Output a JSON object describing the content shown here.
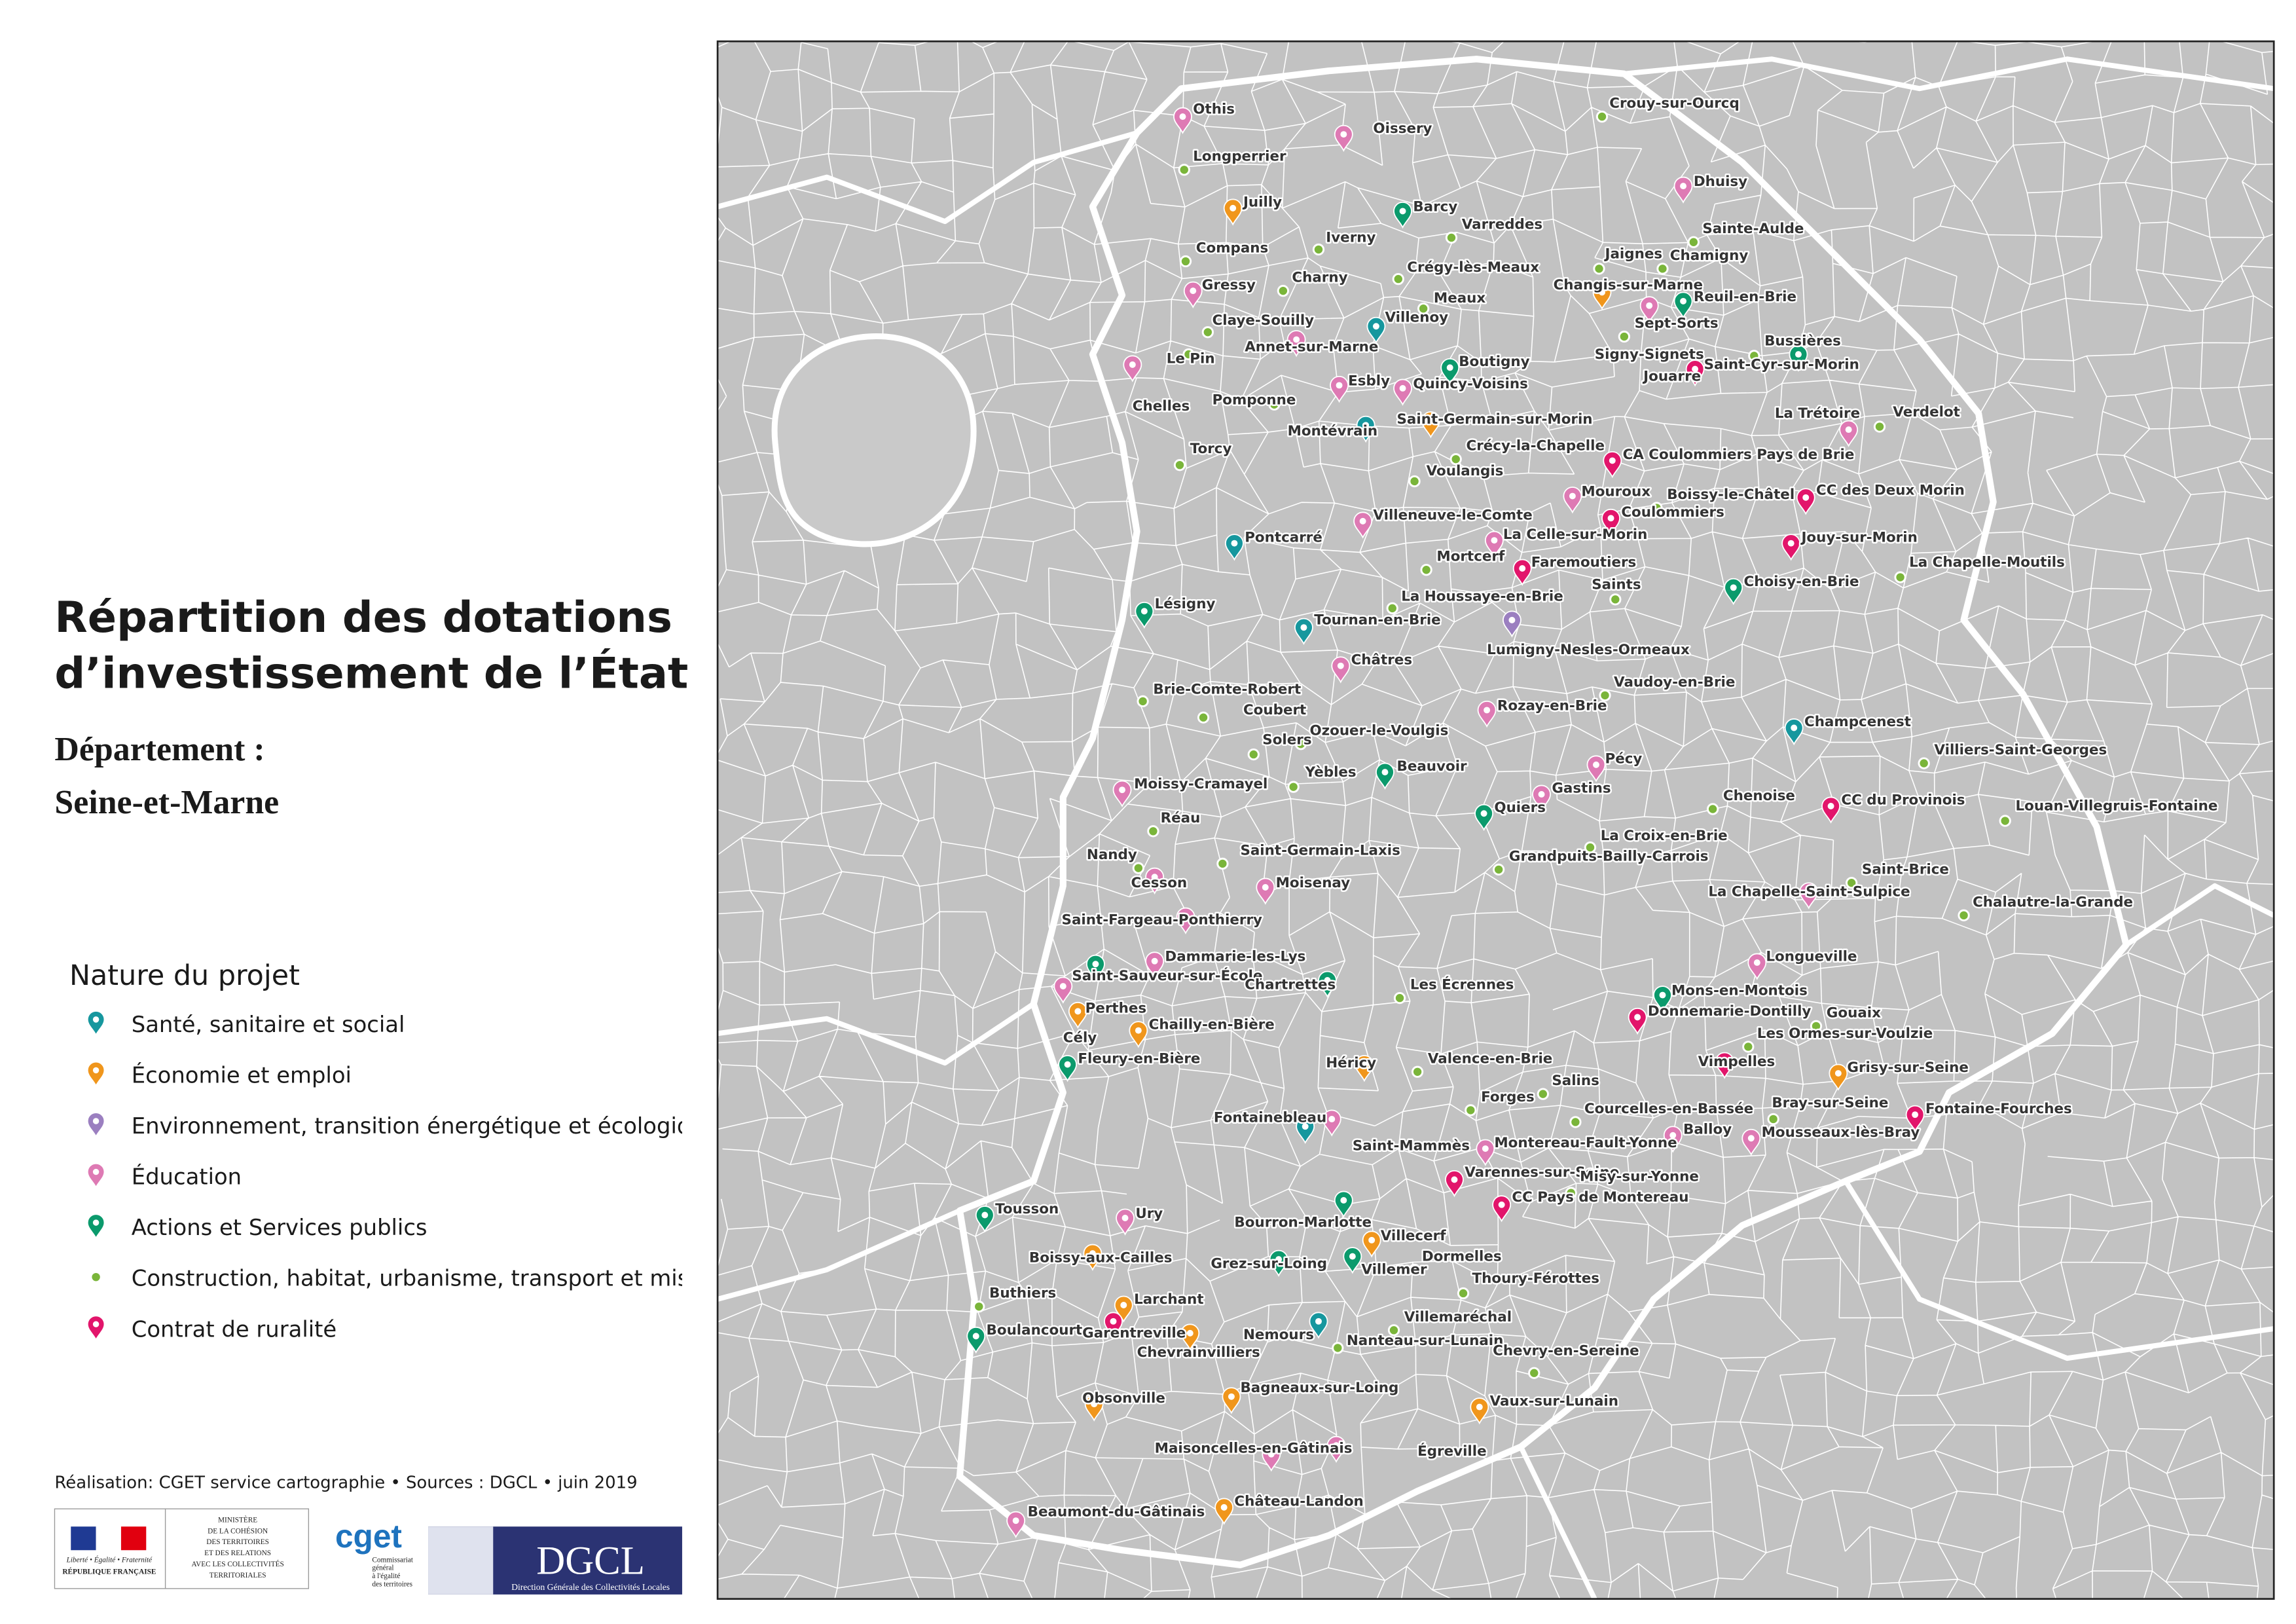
{
  "header": {
    "title_lines": [
      "Répartition des dotations",
      "d’investissement de l’État"
    ],
    "subtitle_lines": [
      "Département :",
      "Seine-et-Marne"
    ]
  },
  "legend": {
    "title": "Nature du projet",
    "items": [
      {
        "label": "Santé, sanitaire et social",
        "color": "#16979e"
      },
      {
        "label": "Économie et emploi",
        "color": "#f0961c"
      },
      {
        "label": "Environnement, transition énergétique et écologique",
        "color": "#9b7fc0"
      },
      {
        "label": "Éducation",
        "color": "#de7ab4"
      },
      {
        "label": "Actions et Services publics",
        "color": "#0b9a6c"
      },
      {
        "label": "Construction, habitat, urbanisme, transport et mise en accessibilité",
        "color": "#7ab53a"
      },
      {
        "label": "Contrat de ruralité",
        "color": "#e2156b"
      }
    ]
  },
  "credits": "Réalisation: CGET service cartographie • Sources : DGCL • juin 2019",
  "logos": {
    "republique": [
      "Liberté • Égalité • Fraternité",
      "RÉPUBLIQUE FRANÇAISE"
    ],
    "ministere": [
      "MINISTÈRE",
      "DE LA COHÉSION",
      "DES TERRITOIRES",
      "ET DES RELATIONS",
      "AVEC LES COLLECTIVITÉS",
      "TERRITORIALES"
    ],
    "cget": [
      "cget",
      "Commissariat",
      "général",
      "à l'égalité",
      "des territoires"
    ],
    "dgcl": [
      "DGCL",
      "Direction Générale des Collectivités Locales"
    ]
  },
  "map": {
    "places": [
      {
        "name": "Othis",
        "nature": 3
      },
      {
        "name": "Oissery",
        "nature": 3
      },
      {
        "name": "Crouy-sur-Ourcq",
        "nature": 5
      },
      {
        "name": "Longperrier",
        "nature": 5
      },
      {
        "name": "Juilly",
        "nature": 1
      },
      {
        "name": "Dhuisy",
        "nature": 3
      },
      {
        "name": "Barcy",
        "nature": 4
      },
      {
        "name": "Compans",
        "nature": 5
      },
      {
        "name": "Iverny",
        "nature": 5
      },
      {
        "name": "Varreddes",
        "nature": 5
      },
      {
        "name": "Sainte-Aulde",
        "nature": 5
      },
      {
        "name": "Charny",
        "nature": 5
      },
      {
        "name": "Crégy-lès-Meaux",
        "nature": 5
      },
      {
        "name": "Jaignes",
        "nature": 5
      },
      {
        "name": "Chamigny",
        "nature": 5
      },
      {
        "name": "Gressy",
        "nature": 3
      },
      {
        "name": "Meaux",
        "nature": 5
      },
      {
        "name": "Changis-sur-Marne",
        "nature": 1
      },
      {
        "name": "Reuil-en-Brie",
        "nature": 4
      },
      {
        "name": "Claye-Souilly",
        "nature": 5
      },
      {
        "name": "Villenoy",
        "nature": 0
      },
      {
        "name": "Sept-Sorts",
        "nature": 3
      },
      {
        "name": "Annet-sur-Marne",
        "nature": 3
      },
      {
        "name": "Signy-Signets",
        "nature": 5
      },
      {
        "name": "Bussières",
        "nature": 4
      },
      {
        "name": "Le Pin",
        "nature": 5
      },
      {
        "name": "Boutigny",
        "nature": 4
      },
      {
        "name": "Saint-Cyr-sur-Morin",
        "nature": 5
      },
      {
        "name": "Chelles",
        "nature": 3
      },
      {
        "name": "Esbly",
        "nature": 3
      },
      {
        "name": "Quincy-Voisins",
        "nature": 3
      },
      {
        "name": "Jouarre",
        "nature": 6
      },
      {
        "name": "Pomponne",
        "nature": 5
      },
      {
        "name": "Montévrain",
        "nature": 0
      },
      {
        "name": "Saint-Germain-sur-Morin",
        "nature": 1
      },
      {
        "name": "La Trétoire",
        "nature": 3
      },
      {
        "name": "Verdelot",
        "nature": 5
      },
      {
        "name": "Torcy",
        "nature": 5
      },
      {
        "name": "Crécy-la-Chapelle",
        "nature": 5
      },
      {
        "name": "CA Coulommiers Pays de Brie",
        "nature": 6
      },
      {
        "name": "Voulangis",
        "nature": 5
      },
      {
        "name": "Mouroux",
        "nature": 3
      },
      {
        "name": "Boissy-le-Châtel",
        "nature": 5
      },
      {
        "name": "CC des Deux Morin",
        "nature": 6
      },
      {
        "name": "Villeneuve-le-Comte",
        "nature": 3
      },
      {
        "name": "Coulommiers",
        "nature": 6
      },
      {
        "name": "Pontcarré",
        "nature": 0
      },
      {
        "name": "La Celle-sur-Morin",
        "nature": 3
      },
      {
        "name": "Jouy-sur-Morin",
        "nature": 6
      },
      {
        "name": "Mortcerf",
        "nature": 5
      },
      {
        "name": "Faremoutiers",
        "nature": 6
      },
      {
        "name": "La Chapelle-Moutils",
        "nature": 5
      },
      {
        "name": "Choisy-en-Brie",
        "nature": 4
      },
      {
        "name": "Saints",
        "nature": 5
      },
      {
        "name": "La Houssaye-en-Brie",
        "nature": 5
      },
      {
        "name": "Lésigny",
        "nature": 4
      },
      {
        "name": "Tournan-en-Brie",
        "nature": 0
      },
      {
        "name": "Lumigny-Nesles-Ormeaux",
        "nature": 2
      },
      {
        "name": "Châtres",
        "nature": 3
      },
      {
        "name": "Vaudoy-en-Brie",
        "nature": 5
      },
      {
        "name": "Brie-Comte-Robert",
        "nature": 5
      },
      {
        "name": "Coubert",
        "nature": 5
      },
      {
        "name": "Rozay-en-Brie",
        "nature": 3
      },
      {
        "name": "Champcenest",
        "nature": 0
      },
      {
        "name": "Solers",
        "nature": 5
      },
      {
        "name": "Ozouer-le-Voulgis",
        "nature": 5
      },
      {
        "name": "Villiers-Saint-Georges",
        "nature": 5
      },
      {
        "name": "Pécy",
        "nature": 3
      },
      {
        "name": "Yèbles",
        "nature": 5
      },
      {
        "name": "Beauvoir",
        "nature": 4
      },
      {
        "name": "Moissy-Cramayel",
        "nature": 3
      },
      {
        "name": "Gastins",
        "nature": 3
      },
      {
        "name": "Chenoise",
        "nature": 5
      },
      {
        "name": "CC du Provinois",
        "nature": 6
      },
      {
        "name": "Louan-Villegruis-Fontaine",
        "nature": 5
      },
      {
        "name": "Réau",
        "nature": 5
      },
      {
        "name": "Quiers",
        "nature": 4
      },
      {
        "name": "La Croix-en-Brie",
        "nature": 5
      },
      {
        "name": "Nandy",
        "nature": 5
      },
      {
        "name": "Saint-Germain-Laxis",
        "nature": 5
      },
      {
        "name": "Grandpuits-Bailly-Carrois",
        "nature": 5
      },
      {
        "name": "Saint-Brice",
        "nature": 5
      },
      {
        "name": "Cesson",
        "nature": 3
      },
      {
        "name": "Moisenay",
        "nature": 3
      },
      {
        "name": "La Chapelle-Saint-Sulpice",
        "nature": 3
      },
      {
        "name": "Chalautre-la-Grande",
        "nature": 5
      },
      {
        "name": "Saint-Fargeau-Ponthierry",
        "nature": 3
      },
      {
        "name": "Dammarie-les-Lys",
        "nature": 3
      },
      {
        "name": "Longueville",
        "nature": 3
      },
      {
        "name": "Saint-Sauveur-sur-École",
        "nature": 4
      },
      {
        "name": "Chartrettes",
        "nature": 4
      },
      {
        "name": "Les Écrennes",
        "nature": 5
      },
      {
        "name": "Mons-en-Montois",
        "nature": 4
      },
      {
        "name": "Perthes",
        "nature": 3
      },
      {
        "name": "Donnemarie-Dontilly",
        "nature": 6
      },
      {
        "name": "Gouaix",
        "nature": 5
      },
      {
        "name": "Cély",
        "nature": 1
      },
      {
        "name": "Chailly-en-Bière",
        "nature": 1
      },
      {
        "name": "Les Ormes-sur-Voulzie",
        "nature": 5
      },
      {
        "name": "Vimpelles",
        "nature": 6
      },
      {
        "name": "Fleury-en-Bière",
        "nature": 4
      },
      {
        "name": "Héricy",
        "nature": 1
      },
      {
        "name": "Valence-en-Brie",
        "nature": 5
      },
      {
        "name": "Grisy-sur-Seine",
        "nature": 1
      },
      {
        "name": "Salins",
        "nature": 5
      },
      {
        "name": "Forges",
        "nature": 5
      },
      {
        "name": "Courcelles-en-Bassée",
        "nature": 5
      },
      {
        "name": "Bray-sur-Seine",
        "nature": 5
      },
      {
        "name": "Fontainebleau",
        "nature": 0
      },
      {
        "name": "Fontaine-Fourches",
        "nature": 6
      },
      {
        "name": "Saint-Mammès",
        "nature": 3
      },
      {
        "name": "Balloy",
        "nature": 3
      },
      {
        "name": "Mousseaux-lès-Bray",
        "nature": 3
      },
      {
        "name": "Montereau-Fault-Yonne",
        "nature": 3
      },
      {
        "name": "Varennes-sur-Seine",
        "nature": 6
      },
      {
        "name": "Misy-sur-Yonne",
        "nature": 5
      },
      {
        "name": "CC Pays de Montereau",
        "nature": 6
      },
      {
        "name": "Tousson",
        "nature": 4
      },
      {
        "name": "Ury",
        "nature": 3
      },
      {
        "name": "Bourron-Marlotte",
        "nature": 4
      },
      {
        "name": "Villecerf",
        "nature": 1
      },
      {
        "name": "Dormelles",
        "nature": 5
      },
      {
        "name": "Boissy-aux-Cailles",
        "nature": 1
      },
      {
        "name": "Grez-sur-Loing",
        "nature": 4
      },
      {
        "name": "Villemer",
        "nature": 4
      },
      {
        "name": "Thoury-Férottes",
        "nature": 5
      },
      {
        "name": "Buthiers",
        "nature": 5
      },
      {
        "name": "Larchant",
        "nature": 1
      },
      {
        "name": "Villemaréchal",
        "nature": 5
      },
      {
        "name": "Boulancourt",
        "nature": 4
      },
      {
        "name": "Nemours",
        "nature": 0
      },
      {
        "name": "Garentreville",
        "nature": 6
      },
      {
        "name": "Chevrainvilliers",
        "nature": 1
      },
      {
        "name": "Nanteau-sur-Lunain",
        "nature": 5
      },
      {
        "name": "Chevry-en-Sereine",
        "nature": 5
      },
      {
        "name": "Obsonville",
        "nature": 1
      },
      {
        "name": "Bagneaux-sur-Loing",
        "nature": 1
      },
      {
        "name": "Vaux-sur-Lunain",
        "nature": 1
      },
      {
        "name": "Maisoncelles-en-Gâtinais",
        "nature": 3
      },
      {
        "name": "Égreville",
        "nature": 3
      },
      {
        "name": "Château-Landon",
        "nature": 1
      },
      {
        "name": "Beaumont-du-Gâtinais",
        "nature": 3
      }
    ]
  }
}
